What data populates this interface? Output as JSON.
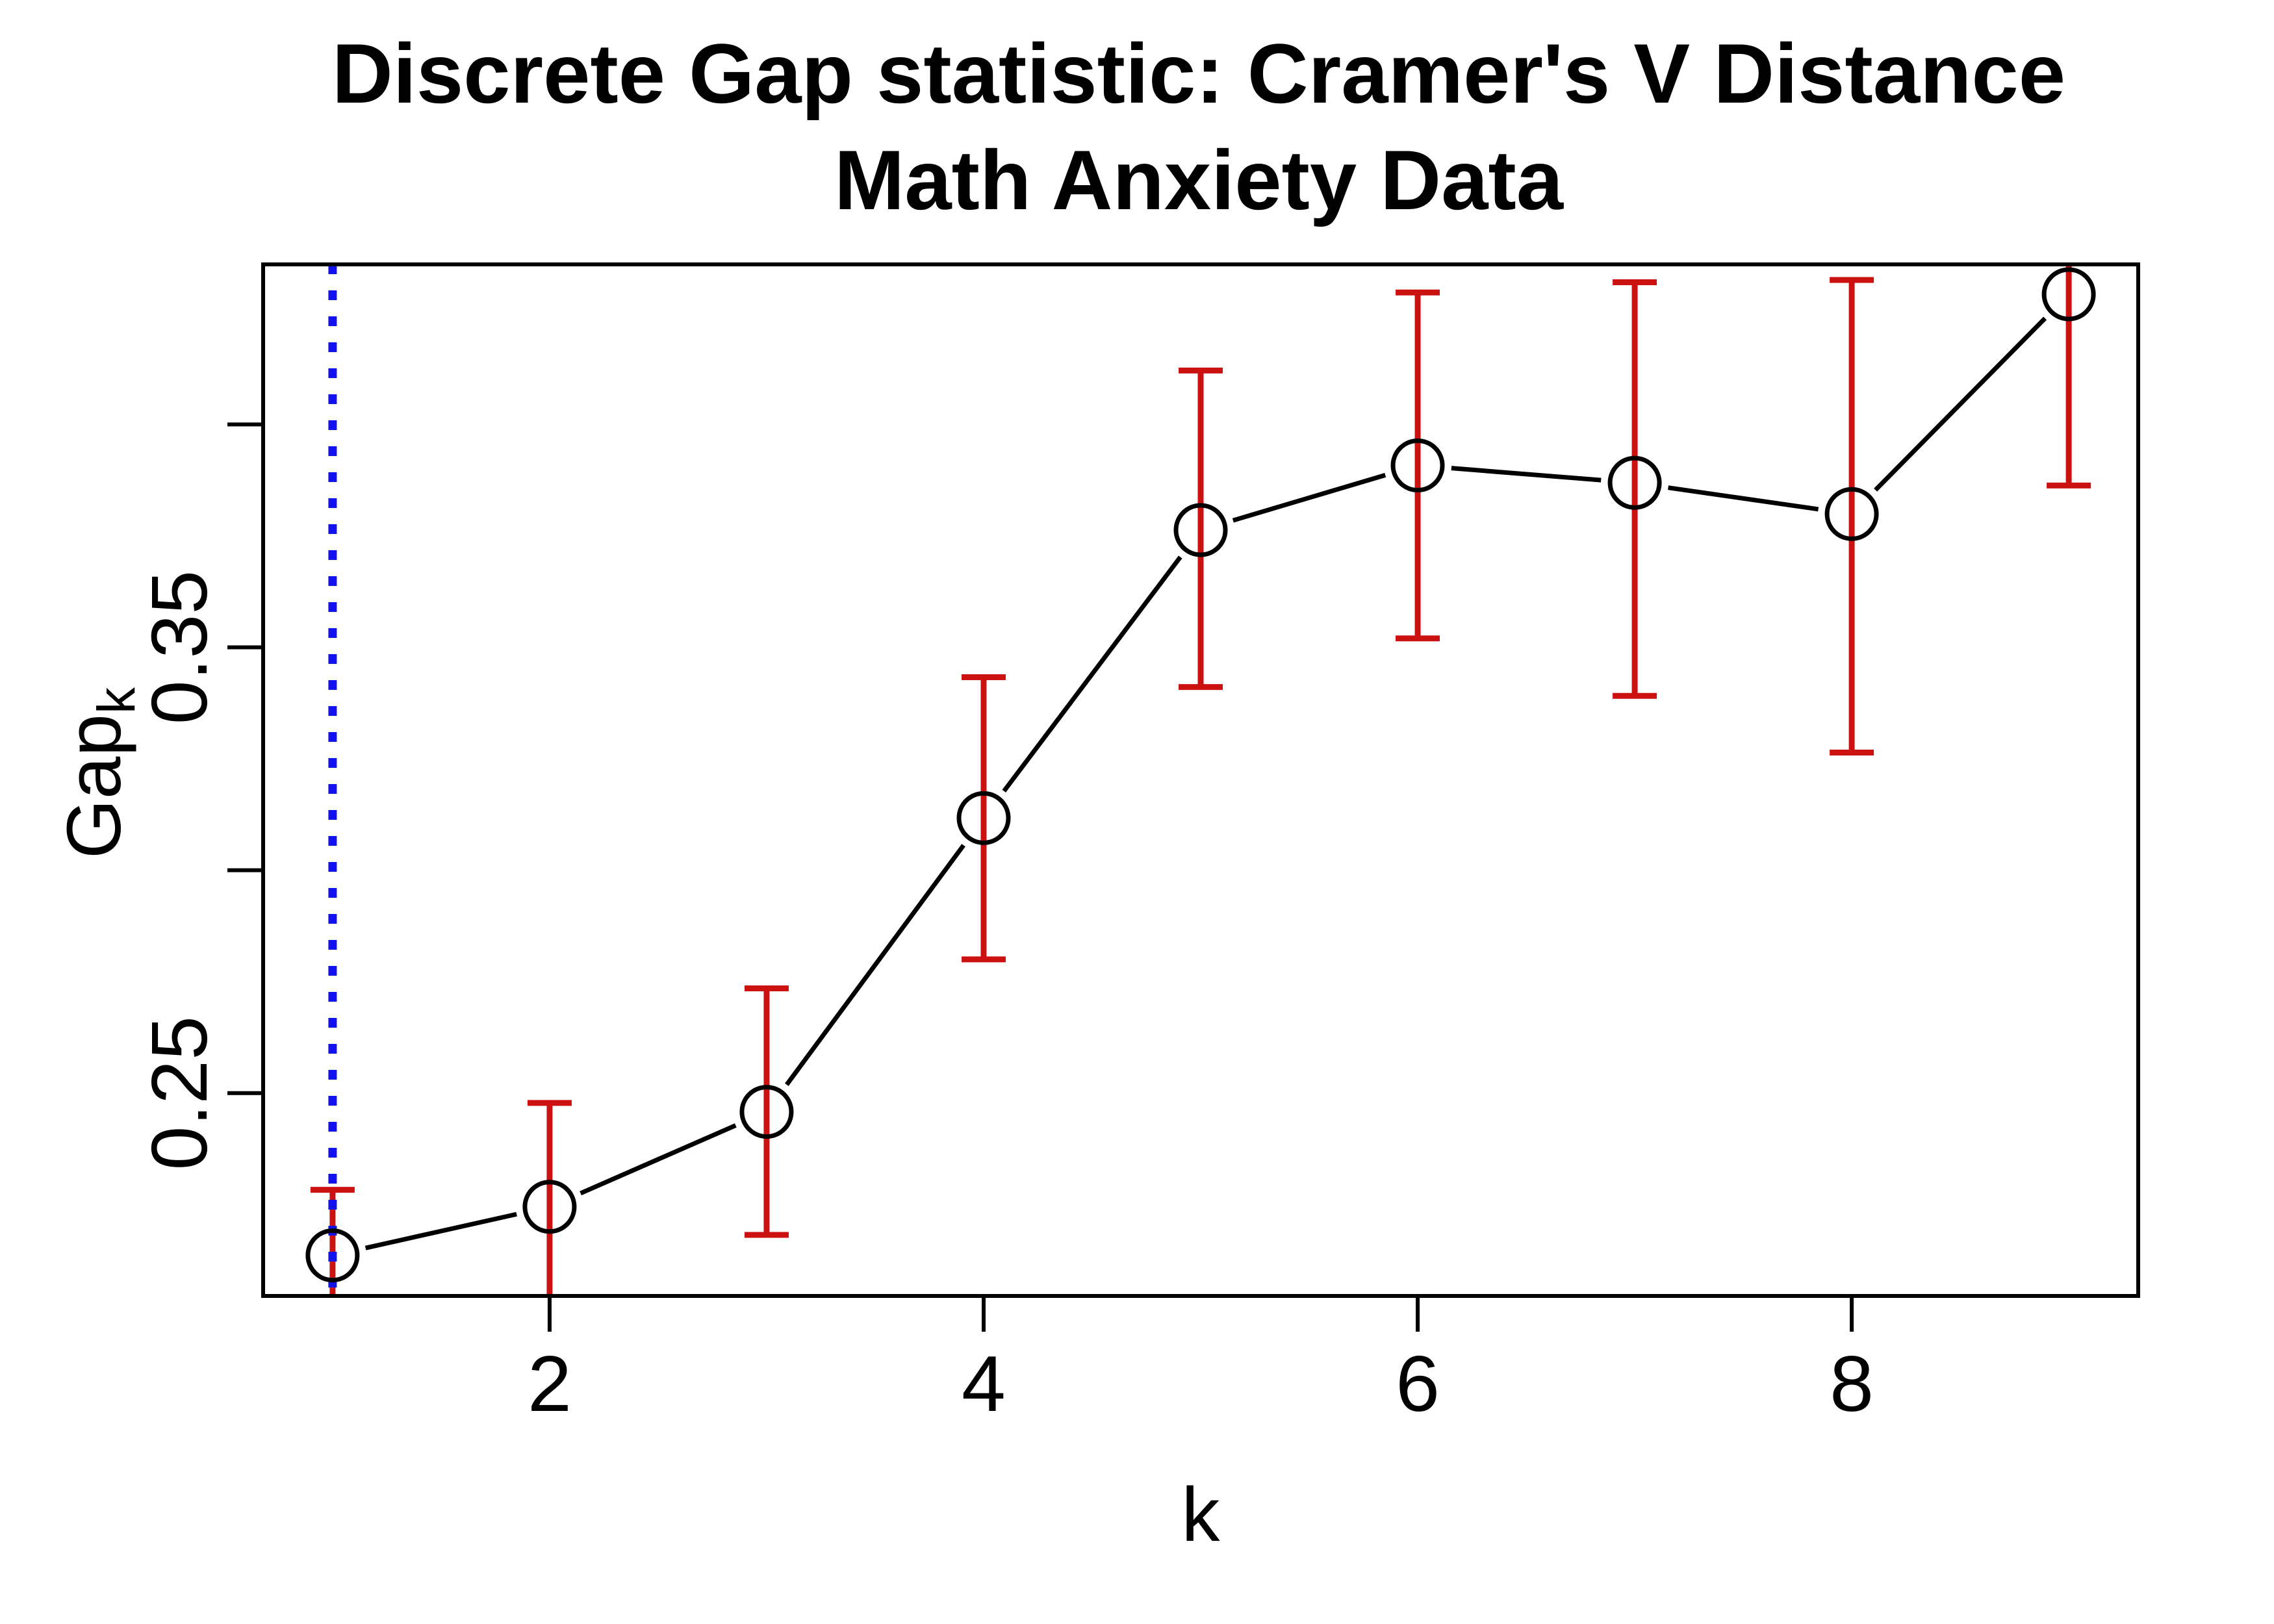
{
  "figure": {
    "title_line1": "Discrete Gap statistic: Cramer's V Distance",
    "title_line2": "Math Anxiety Data",
    "background_color": "#FFFFFF"
  },
  "chart_data": {
    "type": "line",
    "title": "Discrete Gap statistic: Cramer's V Distance",
    "subtitle": "Math Anxiety Data",
    "xlabel": "k",
    "ylabel_main": "Gap",
    "ylabel_sub": "k",
    "x": [
      1,
      2,
      3,
      4,
      5,
      6,
      7,
      8,
      9
    ],
    "series": [
      {
        "name": "Gap statistic",
        "values": [
          0.2136,
          0.2245,
          0.2458,
          0.3117,
          0.3763,
          0.3908,
          0.3869,
          0.3799,
          0.4292
        ],
        "err_high": [
          0.2283,
          0.2478,
          0.2735,
          0.3433,
          0.4121,
          0.4296,
          0.4319,
          0.4324,
          0.472
        ],
        "err_low": [
          0.1988,
          0.2012,
          0.2182,
          0.28,
          0.3411,
          0.352,
          0.3391,
          0.3264,
          0.3863
        ]
      }
    ],
    "x_ticks": [
      {
        "v": 2,
        "label": "2"
      },
      {
        "v": 4,
        "label": "4"
      },
      {
        "v": 6,
        "label": "6"
      },
      {
        "v": 8,
        "label": "8"
      }
    ],
    "y_ticks": [
      {
        "v": 0.25,
        "label": "0.25"
      },
      {
        "v": 0.3,
        "label": ""
      },
      {
        "v": 0.35,
        "label": "0.35"
      },
      {
        "v": 0.4,
        "label": ""
      }
    ],
    "xlim": [
      0.68,
      9.32
    ],
    "ylim": [
      0.2045,
      0.4359
    ],
    "grid": false,
    "legend_position": "none",
    "marker": "open-circle",
    "optimal_k_vline": 1,
    "colors": {
      "line": "#000000",
      "marker": "#000000",
      "error_bar": "#CC1111",
      "optimal_vline": "#1212EE",
      "box": "#000000",
      "text": "#000000"
    },
    "styles": {
      "optimal_vline_style": "dotted",
      "error_bar_caps": true
    }
  }
}
